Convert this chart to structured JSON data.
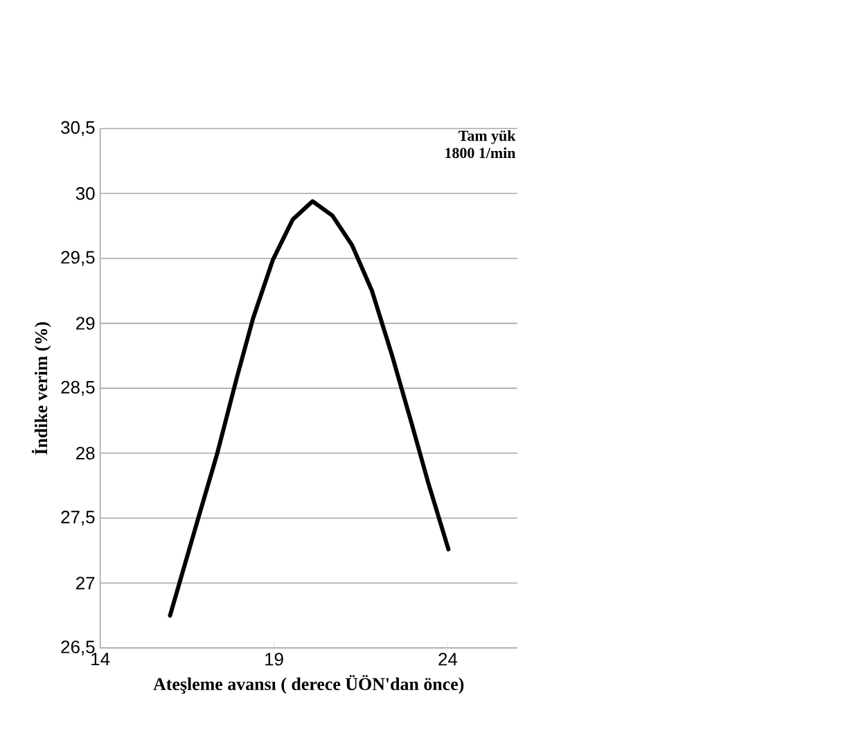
{
  "chart_data": {
    "type": "line",
    "xlabel": "Ateşleme avansı ( derece ÜÖN'dan önce)",
    "ylabel": "İndike verim (%)",
    "annotations": [
      "Tam yük",
      "1800 1/min"
    ],
    "series": [
      {
        "color": "#000000",
        "x": [
          16.01,
          16.79,
          17.36,
          17.93,
          18.4,
          18.97,
          19.54,
          20.11,
          20.68,
          21.25,
          21.82,
          22.39,
          22.96,
          23.43,
          24.02
        ],
        "values": [
          26.75,
          27.47,
          27.99,
          28.58,
          29.04,
          29.49,
          29.8,
          29.94,
          29.83,
          29.6,
          29.25,
          28.76,
          28.23,
          27.78,
          27.26
        ]
      }
    ],
    "xlim": [
      14,
      26
    ],
    "ylim": [
      26.5,
      30.5
    ],
    "xticks": [
      14,
      19,
      24
    ],
    "yticks": [
      {
        "value": 26.5,
        "label": "26,5"
      },
      27,
      {
        "value": 27.5,
        "label": "27,5"
      },
      28,
      {
        "value": 28.5,
        "label": "28,5"
      },
      29,
      {
        "value": 29.5,
        "label": "29,5"
      },
      30,
      {
        "value": 30.5,
        "label": "30,5"
      }
    ],
    "grid": "y",
    "marker": "none",
    "line_style": "solid"
  }
}
